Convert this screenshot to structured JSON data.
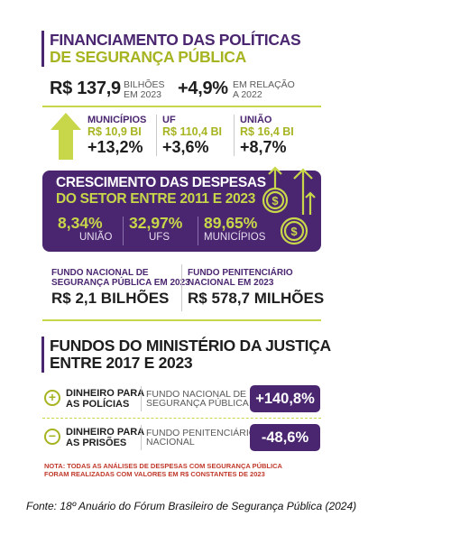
{
  "header": {
    "title_line1": "FINANCIAMENTO DAS POLÍTICAS",
    "title_line2": "DE SEGURANÇA PÚBLICA"
  },
  "total": {
    "value": "R$ 137,9",
    "unit_line1": "BILHÕES",
    "unit_line2": "EM 2023",
    "change": "+4,9%",
    "change_line1": "EM RELAÇÃO",
    "change_line2": "A 2022"
  },
  "spheres": [
    {
      "label": "MUNICÍPIOS",
      "amount": "R$ 10,9 BI",
      "change": "+13,2%"
    },
    {
      "label": "UF",
      "amount": "R$ 110,4 BI",
      "change": "+3,6%"
    },
    {
      "label": "UNIÃO",
      "amount": "R$ 16,4 BI",
      "change": "+8,7%"
    }
  ],
  "growth_card": {
    "title_line1": "CRESCIMENTO DAS DESPESAS",
    "title_line2": "DO SETOR ENTRE 2011 E 2023",
    "items": [
      {
        "value": "8,34%",
        "label": "UNIÃO"
      },
      {
        "value": "32,97%",
        "label": "UFS"
      },
      {
        "value": "89,65%",
        "label": "MUNICÍPIOS"
      }
    ]
  },
  "funds_2023": [
    {
      "label_line1": "FUNDO NACIONAL DE",
      "label_line2": "SEGURANÇA PÚBLICA EM 2023",
      "value": "R$ 2,1 BILHÕES"
    },
    {
      "label_line1": "FUNDO PENITENCIÁRIO",
      "label_line2": "NACIONAL EM 2023",
      "value": "R$ 578,7 MILHÕES"
    }
  ],
  "ministry": {
    "title_line1": "FUNDOS DO MINISTÉRIO DA JUSTIÇA",
    "title_line2": "ENTRE 2017 E 2023",
    "rows": [
      {
        "sign": "+",
        "label_line1": "DINHEIRO PARA",
        "label_line2": "AS POLÍCIAS",
        "fund_line1": "FUNDO NACIONAL DE",
        "fund_line2": "SEGURANÇA PÚBLICA",
        "change": "+140,8%"
      },
      {
        "sign": "−",
        "label_line1": "DINHEIRO PARA",
        "label_line2": "AS PRISÕES",
        "fund_line1": "FUNDO PENITENCIÁRIO",
        "fund_line2": "NACIONAL",
        "change": "-48,6%"
      }
    ]
  },
  "note": {
    "line1": "NOTA: TODAS AS ANÁLISES DE DESPESAS COM SEGURANÇA PÚBLICA",
    "line2": "FORAM REALIZADAS COM VALORES EM R$ CONSTANTES DE 2023"
  },
  "source": "Fonte: 18º Anuário do Fórum Brasileiro de Segurança Pública (2024)",
  "colors": {
    "purple": "#4b2670",
    "lime": "#c8d64a",
    "olive": "#a7b421",
    "note_red": "#c0392b"
  },
  "icons": [
    "arrow-up-icon",
    "money-growth-icon",
    "plus-circle-icon",
    "minus-circle-icon"
  ]
}
